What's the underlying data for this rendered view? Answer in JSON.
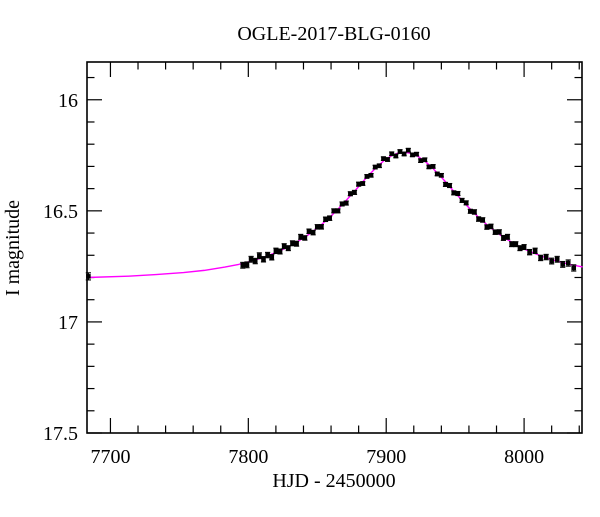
{
  "figure": {
    "background_color": "#ffffff",
    "frame_color": "#000000"
  },
  "chart_data": {
    "type": "scatter",
    "title": "OGLE-2017-BLG-0160",
    "xlabel": "HJD - 2450000",
    "ylabel": "I magnitude",
    "xlim": [
      7683,
      8042
    ],
    "ylim": [
      17.5,
      15.83
    ],
    "y_axis_inverted": true,
    "grid": false,
    "legend": "none",
    "x_major_ticks": [
      7700,
      7800,
      7900,
      8000
    ],
    "x_major_tick_labels": [
      "7700",
      "7800",
      "7900",
      "8000"
    ],
    "x_minor_tick_step": 20,
    "y_major_ticks": [
      16,
      16.5,
      17,
      17.5
    ],
    "y_major_tick_labels": [
      "16",
      "16.5",
      "17",
      "17.5"
    ],
    "y_minor_tick_step": 0.1,
    "series": [
      {
        "name": "ogle-i-band-photometry",
        "type": "scatter",
        "marker": "filled-square",
        "color": "#000000",
        "error_bars": true,
        "points_format": [
          "hjd_minus_2450000",
          "i_magnitude",
          "mag_error"
        ],
        "points": [
          [
            7684,
            16.795,
            0.016
          ],
          [
            7796,
            16.745,
            0.013
          ],
          [
            7799,
            16.743,
            0.013
          ],
          [
            7802,
            16.718,
            0.013
          ],
          [
            7805,
            16.726,
            0.012
          ],
          [
            7808,
            16.702,
            0.013
          ],
          [
            7811,
            16.718,
            0.012
          ],
          [
            7814,
            16.699,
            0.012
          ],
          [
            7817,
            16.709,
            0.012
          ],
          [
            7820,
            16.68,
            0.012
          ],
          [
            7823,
            16.683,
            0.011
          ],
          [
            7826,
            16.659,
            0.011
          ],
          [
            7829,
            16.668,
            0.011
          ],
          [
            7832,
            16.646,
            0.011
          ],
          [
            7835,
            16.648,
            0.011
          ],
          [
            7838,
            16.617,
            0.011
          ],
          [
            7841,
            16.622,
            0.01
          ],
          [
            7844,
            16.592,
            0.01
          ],
          [
            7847,
            16.598,
            0.01
          ],
          [
            7850,
            16.572,
            0.01
          ],
          [
            7853,
            16.572,
            0.01
          ],
          [
            7856,
            16.538,
            0.01
          ],
          [
            7859,
            16.533,
            0.01
          ],
          [
            7862,
            16.5,
            0.009
          ],
          [
            7865,
            16.5,
            0.009
          ],
          [
            7868,
            16.469,
            0.009
          ],
          [
            7871,
            16.465,
            0.009
          ],
          [
            7874,
            16.423,
            0.009
          ],
          [
            7877,
            16.417,
            0.009
          ],
          [
            7880,
            16.38,
            0.009
          ],
          [
            7883,
            16.377,
            0.008
          ],
          [
            7886,
            16.345,
            0.008
          ],
          [
            7889,
            16.34,
            0.008
          ],
          [
            7892,
            16.303,
            0.008
          ],
          [
            7895,
            16.297,
            0.008
          ],
          [
            7898,
            16.265,
            0.008
          ],
          [
            7901,
            16.269,
            0.008
          ],
          [
            7904,
            16.243,
            0.008
          ],
          [
            7907,
            16.253,
            0.008
          ],
          [
            7910,
            16.233,
            0.008
          ],
          [
            7913,
            16.244,
            0.008
          ],
          [
            7916,
            16.227,
            0.008
          ],
          [
            7919,
            16.248,
            0.008
          ],
          [
            7922,
            16.245,
            0.008
          ],
          [
            7925,
            16.274,
            0.008
          ],
          [
            7928,
            16.27,
            0.008
          ],
          [
            7931,
            16.302,
            0.008
          ],
          [
            7934,
            16.3,
            0.008
          ],
          [
            7937,
            16.334,
            0.008
          ],
          [
            7940,
            16.34,
            0.008
          ],
          [
            7943,
            16.381,
            0.009
          ],
          [
            7946,
            16.386,
            0.009
          ],
          [
            7949,
            16.419,
            0.009
          ],
          [
            7952,
            16.422,
            0.009
          ],
          [
            7955,
            16.453,
            0.009
          ],
          [
            7958,
            16.464,
            0.009
          ],
          [
            7961,
            16.502,
            0.009
          ],
          [
            7964,
            16.505,
            0.01
          ],
          [
            7967,
            16.537,
            0.01
          ],
          [
            7970,
            16.541,
            0.01
          ],
          [
            7973,
            16.573,
            0.01
          ],
          [
            7976,
            16.57,
            0.01
          ],
          [
            7979,
            16.596,
            0.01
          ],
          [
            7982,
            16.595,
            0.01
          ],
          [
            7985,
            16.622,
            0.011
          ],
          [
            7988,
            16.617,
            0.011
          ],
          [
            7991,
            16.65,
            0.011
          ],
          [
            7994,
            16.65,
            0.011
          ],
          [
            7997,
            16.668,
            0.011
          ],
          [
            8000,
            16.663,
            0.011
          ],
          [
            8004,
            16.686,
            0.012
          ],
          [
            8008,
            16.68,
            0.012
          ],
          [
            8012,
            16.712,
            0.012
          ],
          [
            8016,
            16.708,
            0.012
          ],
          [
            8020,
            16.726,
            0.013
          ],
          [
            8024,
            16.718,
            0.013
          ],
          [
            8028,
            16.741,
            0.013
          ],
          [
            8032,
            16.735,
            0.014
          ],
          [
            8036,
            16.757,
            0.014
          ]
        ]
      },
      {
        "name": "microlensing-model-curve",
        "type": "line",
        "color": "#ff00ff",
        "points_format": [
          "hjd_minus_2450000",
          "i_magnitude"
        ],
        "points": [
          [
            7683,
            16.8
          ],
          [
            7713,
            16.794
          ],
          [
            7733,
            16.787
          ],
          [
            7753,
            16.778
          ],
          [
            7768,
            16.768
          ],
          [
            7783,
            16.753
          ],
          [
            7793,
            16.741
          ],
          [
            7803,
            16.725
          ],
          [
            7813,
            16.705
          ],
          [
            7823,
            16.68
          ],
          [
            7833,
            16.649
          ],
          [
            7843,
            16.61
          ],
          [
            7848,
            16.587
          ],
          [
            7853,
            16.562
          ],
          [
            7858,
            16.535
          ],
          [
            7863,
            16.505
          ],
          [
            7868,
            16.473
          ],
          [
            7873,
            16.439
          ],
          [
            7878,
            16.405
          ],
          [
            7883,
            16.369
          ],
          [
            7888,
            16.335
          ],
          [
            7893,
            16.304
          ],
          [
            7898,
            16.276
          ],
          [
            7903,
            16.255
          ],
          [
            7908,
            16.241
          ],
          [
            7913,
            16.236
          ],
          [
            7918,
            16.241
          ],
          [
            7923,
            16.255
          ],
          [
            7928,
            16.276
          ],
          [
            7933,
            16.304
          ],
          [
            7938,
            16.335
          ],
          [
            7943,
            16.369
          ],
          [
            7948,
            16.405
          ],
          [
            7953,
            16.439
          ],
          [
            7958,
            16.473
          ],
          [
            7963,
            16.505
          ],
          [
            7968,
            16.535
          ],
          [
            7973,
            16.562
          ],
          [
            7978,
            16.587
          ],
          [
            7983,
            16.61
          ],
          [
            7993,
            16.649
          ],
          [
            8003,
            16.68
          ],
          [
            8013,
            16.705
          ],
          [
            8023,
            16.725
          ],
          [
            8033,
            16.741
          ],
          [
            8042,
            16.752
          ]
        ]
      }
    ]
  }
}
